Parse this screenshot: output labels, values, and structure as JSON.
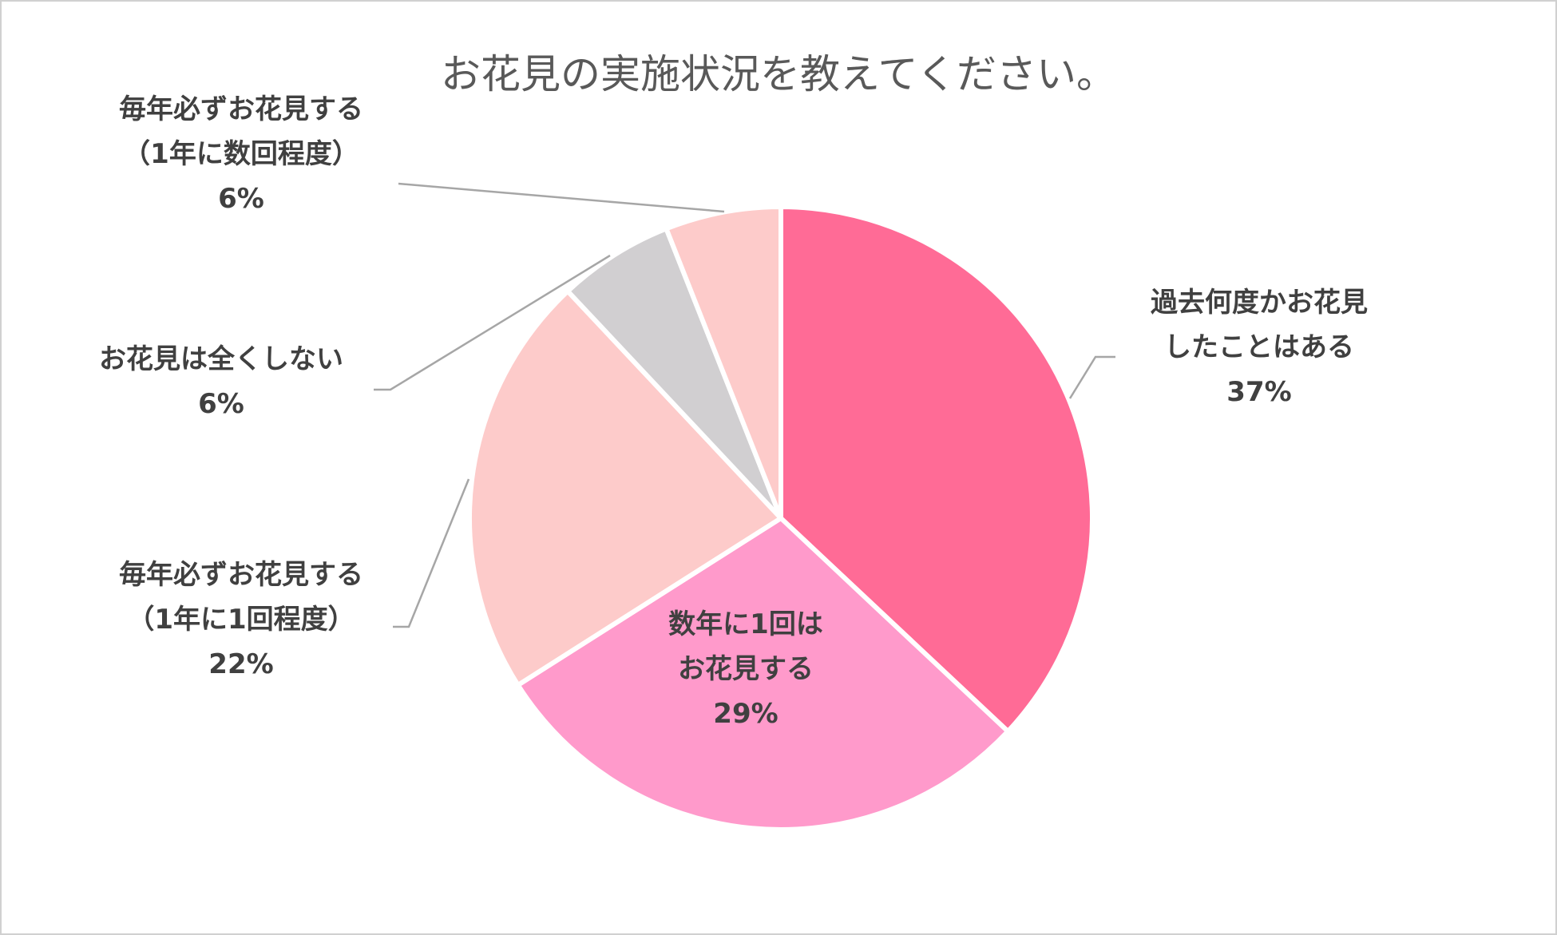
{
  "chart_data": {
    "type": "pie",
    "title": "お花見の実施状況を教えてください。",
    "slices": [
      {
        "label_lines": [
          "過去何度かお花見",
          "したことはある"
        ],
        "pct_label": "37%",
        "value": 37,
        "color": "#ff6b96"
      },
      {
        "label_lines": [
          "数年に1回は",
          "お花見する"
        ],
        "pct_label": "29%",
        "value": 29,
        "color": "#ff9acb"
      },
      {
        "label_lines": [
          "毎年必ずお花見する",
          "（1年に1回程度）"
        ],
        "pct_label": "22%",
        "value": 22,
        "color": "#fdcbca"
      },
      {
        "label_lines": [
          "お花見は全くしない"
        ],
        "pct_label": "6%",
        "value": 6,
        "color": "#d1cfd1"
      },
      {
        "label_lines": [
          "毎年必ずお花見する",
          "（1年に数回程度）"
        ],
        "pct_label": "6%",
        "value": 6,
        "color": "#fdcbca"
      }
    ],
    "start_angle": "12 o'clock",
    "direction": "clockwise",
    "legend": "none",
    "data_labels": "category name and percentage",
    "leader_line_color": "#a6a6a6"
  }
}
